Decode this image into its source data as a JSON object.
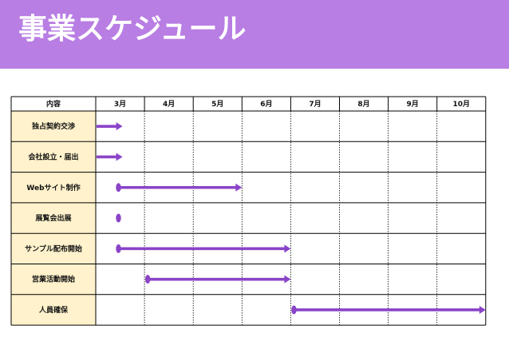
{
  "header": {
    "title": "事業スケジュール"
  },
  "colors": {
    "accent": "#b87ee3",
    "bar": "#8a44c8",
    "task_cell": "#fff2cc",
    "border": "#000000"
  },
  "table": {
    "first_header": "内容",
    "months": [
      "3月",
      "4月",
      "5月",
      "6月",
      "7月",
      "8月",
      "9月",
      "10月"
    ],
    "tasks": [
      {
        "label": "独占契約交渉",
        "start": 0,
        "end": 0.55,
        "start_dot": false,
        "arrow": true
      },
      {
        "label": "会社設立・届出",
        "start": 0,
        "end": 0.55,
        "start_dot": false,
        "arrow": true
      },
      {
        "label": "Webサイト制作",
        "start": 0.45,
        "end": 3.0,
        "start_dot": true,
        "arrow": true
      },
      {
        "label": "展覧会出展",
        "start": 0.45,
        "end": 0.45,
        "start_dot": true,
        "arrow": false
      },
      {
        "label": "サンプル配布開始",
        "start": 0.45,
        "end": 4.0,
        "start_dot": true,
        "arrow": true
      },
      {
        "label": "営業活動開始",
        "start": 1.05,
        "end": 4.0,
        "start_dot": true,
        "arrow": true
      },
      {
        "label": "人員確保",
        "start": 4.05,
        "end": 8.0,
        "start_dot": true,
        "arrow": true
      }
    ]
  }
}
